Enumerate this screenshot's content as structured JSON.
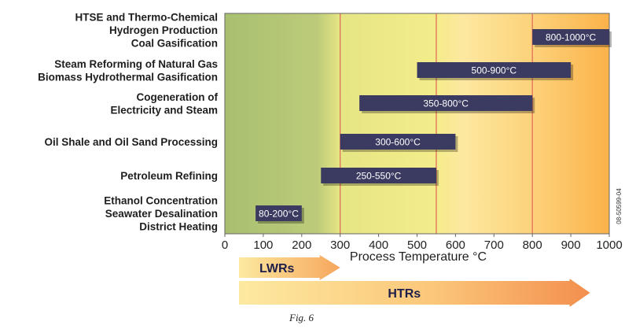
{
  "chart_data": {
    "type": "bar",
    "orientation": "horizontal",
    "subtype": "range",
    "xlabel": "Process Temperature °C",
    "xlim": [
      0,
      1000
    ],
    "xticks": [
      0,
      100,
      200,
      300,
      400,
      500,
      600,
      700,
      800,
      900,
      1000
    ],
    "grid": false,
    "boundaries": [
      300,
      550,
      800
    ],
    "zone_colors": [
      "#a8c070",
      "#f2ec88",
      "#fde38e",
      "#fbb24a"
    ],
    "bar_color": "#3b3b62",
    "categories": [
      {
        "lines": [
          "HTSE and Thermo-Chemical",
          "Hydrogen Production",
          "Coal Gasification"
        ],
        "start": 800,
        "end": 1000,
        "label": "800-1000°C"
      },
      {
        "lines": [
          "Steam Reforming of Natural Gas",
          "Biomass Hydrothermal Gasification"
        ],
        "start": 500,
        "end": 900,
        "label": "500-900°C"
      },
      {
        "lines": [
          "Cogeneration of",
          "Electricity and Steam"
        ],
        "start": 350,
        "end": 800,
        "label": "350-800°C"
      },
      {
        "lines": [
          "Oil Shale and Oil Sand Processing"
        ],
        "start": 300,
        "end": 600,
        "label": "300-600°C"
      },
      {
        "lines": [
          "Petroleum Refining"
        ],
        "start": 250,
        "end": 550,
        "label": "250-550°C"
      },
      {
        "lines": [
          "Ethanol Concentration",
          "Seawater Desalination",
          "District Heating"
        ],
        "start": 80,
        "end": 200,
        "label": "80-200°C"
      }
    ],
    "reactor_ranges": [
      {
        "name": "LWRs",
        "start": 0,
        "end": 300
      },
      {
        "name": "HTRs",
        "start": 0,
        "end": 950
      }
    ],
    "side_code": "08-50599-04"
  },
  "caption": "Fig. 6"
}
